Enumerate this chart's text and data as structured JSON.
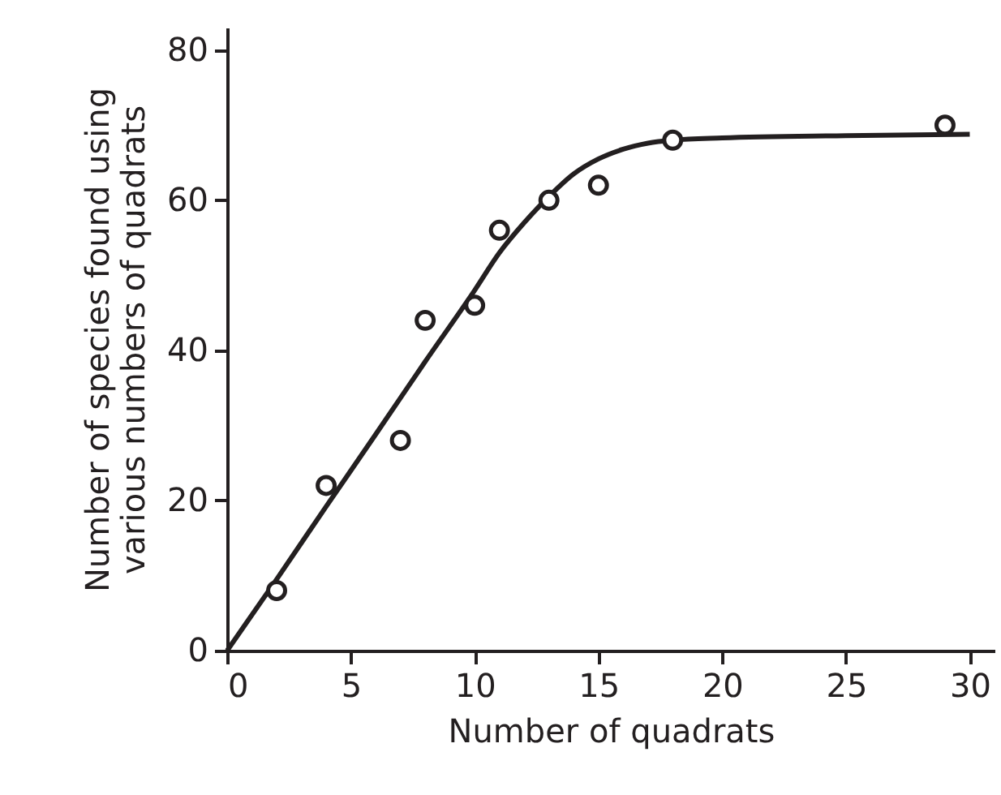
{
  "chart_data": {
    "type": "scatter",
    "xlabel": "Number of quadrats",
    "ylabel": "Number of species found using various numbers of quadrats",
    "xlim": [
      0,
      31
    ],
    "ylim": [
      0,
      83
    ],
    "xticks": [
      0,
      5,
      10,
      15,
      20,
      25,
      30
    ],
    "yticks": [
      0,
      20,
      40,
      60,
      80
    ],
    "grid": false,
    "series": [
      {
        "type": "line",
        "color": "#231f20",
        "x": [
          0,
          2,
          4,
          6,
          8,
          10,
          11,
          12,
          13,
          14,
          15,
          16,
          17,
          18,
          20,
          25,
          30
        ],
        "values": [
          0,
          9.5,
          19.2,
          28.8,
          38.5,
          48,
          53,
          57,
          60.5,
          63.5,
          65.5,
          66.8,
          67.6,
          68,
          68.3,
          68.6,
          68.8
        ]
      },
      {
        "color": "#231f20",
        "marker": "circle",
        "x": [
          2,
          4,
          7,
          8,
          10,
          11,
          13,
          15,
          18,
          29
        ],
        "values": [
          8,
          22,
          28,
          44,
          46,
          56,
          60,
          62,
          68,
          70
        ]
      }
    ]
  }
}
